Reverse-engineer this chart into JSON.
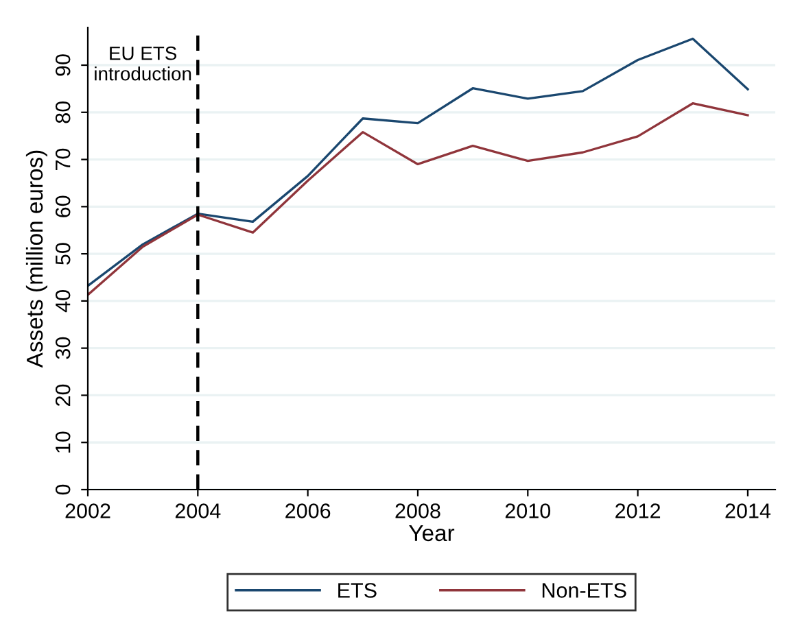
{
  "chart_data": {
    "type": "line",
    "xlabel": "Year",
    "ylabel": "Assets (million euros)",
    "x": [
      2002,
      2003,
      2004,
      2005,
      2006,
      2007,
      2008,
      2009,
      2010,
      2011,
      2012,
      2013,
      2014
    ],
    "series": [
      {
        "name": "ETS",
        "color": "#1a476f",
        "values": [
          43.2,
          52,
          58.5,
          56.8,
          66.5,
          78.7,
          77.7,
          85.1,
          82.9,
          84.5,
          91.1,
          95.6,
          84.9
        ]
      },
      {
        "name": "Non-ETS",
        "color": "#90353b",
        "values": [
          41.3,
          51.5,
          58.3,
          54.5,
          65.5,
          75.8,
          69.0,
          72.9,
          69.7,
          71.5,
          74.9,
          81.9,
          79.4
        ]
      }
    ],
    "xlim": [
      2002,
      2014.5
    ],
    "xticks": [
      2002,
      2004,
      2006,
      2008,
      2010,
      2012,
      2014
    ],
    "ylim": [
      0,
      98
    ],
    "yticks": [
      0,
      10,
      20,
      30,
      40,
      50,
      60,
      70,
      80,
      90
    ],
    "ref_lines": [
      {
        "axis": "x",
        "value": 2004,
        "label": "EU ETS\nintroduction",
        "color": "#000000",
        "line_style": "dashed"
      }
    ],
    "grid": "y",
    "legend": "bottom",
    "marker": "none",
    "line_style": "solid"
  }
}
